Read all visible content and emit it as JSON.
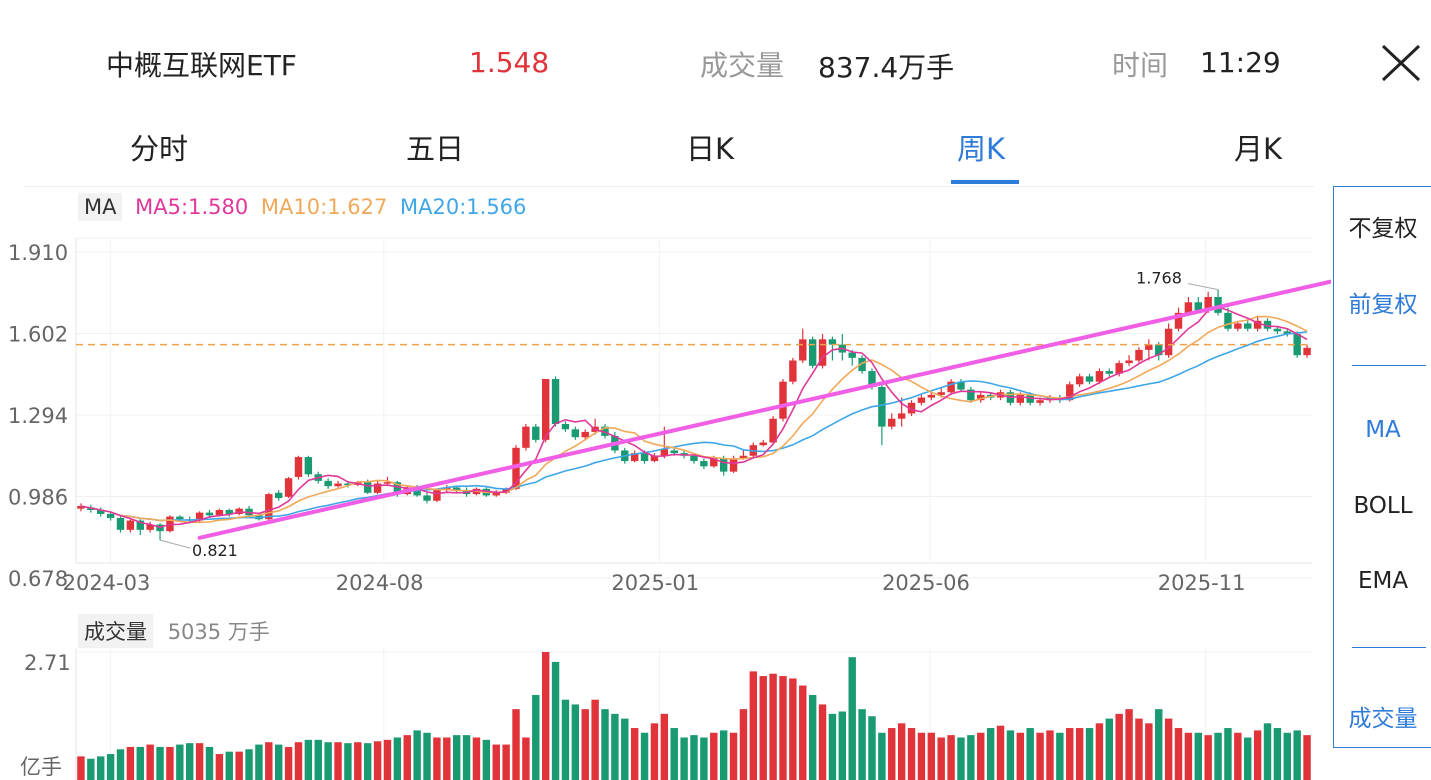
{
  "header": {
    "name": "中概互联网ETF",
    "price": "1.548",
    "volume_label": "成交量",
    "volume_value": "837.4万手",
    "time_label": "时间",
    "time_value": "11:29"
  },
  "tabs": [
    {
      "label": "分时",
      "active": false
    },
    {
      "label": "五日",
      "active": false
    },
    {
      "label": "日K",
      "active": false
    },
    {
      "label": "周K",
      "active": true
    },
    {
      "label": "月K",
      "active": false
    }
  ],
  "ma_legend": {
    "label": "MA",
    "ma5": "MA5:1.580",
    "ma10": "MA10:1.627",
    "ma20": "MA20:1.566"
  },
  "volume_legend": {
    "label": "成交量",
    "total": "5035 万手"
  },
  "side_panel": {
    "items": [
      "不复权",
      "前复权",
      "MA",
      "BOLL",
      "EMA",
      "成交量"
    ]
  },
  "colors": {
    "up": "#e0333a",
    "down": "#1a9a72",
    "accent": "#2f7bd9",
    "ma5": "#e0389a",
    "ma10": "#f0a859",
    "ma20": "#3fa6e8",
    "trendline": "#f05ee6"
  },
  "chart_data": {
    "type": "candlestick",
    "y_ticks": [
      "1.910",
      "1.602",
      "1.294",
      "0.986",
      "0.678"
    ],
    "ylim": [
      0.678,
      1.91
    ],
    "x_ticks": [
      "2024-03",
      "2024-08",
      "2025-01",
      "2025-06",
      "2025-11"
    ],
    "annotations": {
      "high": "1.768",
      "low": "0.821"
    },
    "reference_level": 1.56,
    "trendline_points": [
      [
        12,
        0.83
      ],
      [
        103,
        1.6
      ]
    ],
    "candles": [
      [
        0.94,
        0.95,
        0.93,
        0.96
      ],
      [
        0.945,
        0.935,
        0.925,
        0.955
      ],
      [
        0.935,
        0.92,
        0.91,
        0.945
      ],
      [
        0.92,
        0.905,
        0.895,
        0.93
      ],
      [
        0.905,
        0.86,
        0.85,
        0.91
      ],
      [
        0.86,
        0.895,
        0.85,
        0.9
      ],
      [
        0.895,
        0.86,
        0.84,
        0.9
      ],
      [
        0.86,
        0.88,
        0.85,
        0.89
      ],
      [
        0.88,
        0.855,
        0.821,
        0.885
      ],
      [
        0.855,
        0.91,
        0.85,
        0.915
      ],
      [
        0.91,
        0.9,
        0.89,
        0.915
      ],
      [
        0.9,
        0.895,
        0.885,
        0.91
      ],
      [
        0.895,
        0.925,
        0.89,
        0.93
      ],
      [
        0.925,
        0.915,
        0.905,
        0.935
      ],
      [
        0.915,
        0.935,
        0.91,
        0.94
      ],
      [
        0.935,
        0.92,
        0.91,
        0.94
      ],
      [
        0.92,
        0.94,
        0.915,
        0.945
      ],
      [
        0.94,
        0.915,
        0.905,
        0.95
      ],
      [
        0.915,
        0.9,
        0.895,
        0.92
      ],
      [
        0.9,
        0.995,
        0.895,
        1.0
      ],
      [
        1.0,
        0.98,
        0.97,
        1.01
      ],
      [
        0.985,
        1.055,
        0.98,
        1.06
      ],
      [
        1.06,
        1.135,
        1.05,
        1.14
      ],
      [
        1.135,
        1.07,
        1.06,
        1.14
      ],
      [
        1.07,
        1.045,
        1.035,
        1.08
      ],
      [
        1.045,
        1.025,
        1.015,
        1.055
      ],
      [
        1.025,
        1.035,
        1.02,
        1.045
      ],
      [
        1.035,
        1.03,
        1.02,
        1.045
      ],
      [
        1.03,
        1.04,
        1.025,
        1.045
      ],
      [
        1.04,
        1.0,
        0.995,
        1.05
      ],
      [
        1.0,
        1.035,
        0.995,
        1.045
      ],
      [
        1.035,
        1.04,
        1.03,
        1.06
      ],
      [
        1.04,
        0.995,
        0.985,
        1.045
      ],
      [
        0.995,
        1.02,
        0.99,
        1.025
      ],
      [
        1.02,
        0.99,
        0.985,
        1.03
      ],
      [
        0.99,
        0.97,
        0.96,
        1.0
      ],
      [
        0.97,
        1.01,
        0.965,
        1.015
      ],
      [
        1.01,
        1.02,
        1.005,
        1.03
      ],
      [
        1.02,
        1.01,
        1.0,
        1.025
      ],
      [
        1.01,
        0.995,
        0.985,
        1.02
      ],
      [
        0.995,
        1.015,
        0.99,
        1.02
      ],
      [
        1.015,
        0.99,
        0.985,
        1.02
      ],
      [
        0.99,
        1.0,
        0.985,
        1.01
      ],
      [
        1.0,
        1.015,
        0.995,
        1.02
      ],
      [
        1.015,
        1.17,
        1.01,
        1.18
      ],
      [
        1.17,
        1.25,
        1.16,
        1.26
      ],
      [
        1.25,
        1.2,
        1.19,
        1.26
      ],
      [
        1.2,
        1.43,
        1.19,
        1.43
      ],
      [
        1.43,
        1.26,
        1.25,
        1.44
      ],
      [
        1.26,
        1.24,
        1.23,
        1.27
      ],
      [
        1.24,
        1.21,
        1.2,
        1.25
      ],
      [
        1.21,
        1.23,
        1.2,
        1.24
      ],
      [
        1.23,
        1.25,
        1.22,
        1.28
      ],
      [
        1.25,
        1.215,
        1.205,
        1.26
      ],
      [
        1.215,
        1.16,
        1.15,
        1.23
      ],
      [
        1.16,
        1.12,
        1.11,
        1.17
      ],
      [
        1.12,
        1.15,
        1.115,
        1.16
      ],
      [
        1.15,
        1.12,
        1.11,
        1.16
      ],
      [
        1.12,
        1.14,
        1.115,
        1.15
      ],
      [
        1.14,
        1.165,
        1.13,
        1.25
      ],
      [
        1.16,
        1.15,
        1.14,
        1.17
      ],
      [
        1.15,
        1.14,
        1.13,
        1.16
      ],
      [
        1.14,
        1.12,
        1.11,
        1.15
      ],
      [
        1.12,
        1.1,
        1.09,
        1.13
      ],
      [
        1.1,
        1.13,
        1.095,
        1.14
      ],
      [
        1.13,
        1.08,
        1.065,
        1.14
      ],
      [
        1.08,
        1.13,
        1.075,
        1.14
      ],
      [
        1.13,
        1.14,
        1.125,
        1.16
      ],
      [
        1.14,
        1.18,
        1.135,
        1.19
      ],
      [
        1.18,
        1.19,
        1.175,
        1.2
      ],
      [
        1.19,
        1.28,
        1.185,
        1.29
      ],
      [
        1.28,
        1.42,
        1.27,
        1.43
      ],
      [
        1.42,
        1.5,
        1.41,
        1.51
      ],
      [
        1.5,
        1.58,
        1.49,
        1.62
      ],
      [
        1.58,
        1.48,
        1.47,
        1.59
      ],
      [
        1.48,
        1.58,
        1.47,
        1.6
      ],
      [
        1.58,
        1.56,
        1.5,
        1.59
      ],
      [
        1.56,
        1.53,
        1.5,
        1.6
      ],
      [
        1.53,
        1.51,
        1.48,
        1.54
      ],
      [
        1.51,
        1.46,
        1.45,
        1.52
      ],
      [
        1.46,
        1.4,
        1.39,
        1.47
      ],
      [
        1.4,
        1.25,
        1.18,
        1.41
      ],
      [
        1.25,
        1.28,
        1.24,
        1.3
      ],
      [
        1.28,
        1.3,
        1.25,
        1.36
      ],
      [
        1.3,
        1.34,
        1.29,
        1.35
      ],
      [
        1.34,
        1.36,
        1.33,
        1.37
      ],
      [
        1.36,
        1.37,
        1.35,
        1.38
      ],
      [
        1.37,
        1.38,
        1.36,
        1.4
      ],
      [
        1.38,
        1.42,
        1.37,
        1.43
      ],
      [
        1.42,
        1.39,
        1.38,
        1.43
      ],
      [
        1.39,
        1.35,
        1.34,
        1.4
      ],
      [
        1.35,
        1.37,
        1.34,
        1.38
      ],
      [
        1.37,
        1.36,
        1.35,
        1.38
      ],
      [
        1.36,
        1.38,
        1.35,
        1.39
      ],
      [
        1.38,
        1.34,
        1.33,
        1.39
      ],
      [
        1.34,
        1.37,
        1.33,
        1.38
      ],
      [
        1.37,
        1.34,
        1.33,
        1.38
      ],
      [
        1.34,
        1.35,
        1.33,
        1.36
      ],
      [
        1.35,
        1.36,
        1.34,
        1.37
      ],
      [
        1.36,
        1.35,
        1.34,
        1.37
      ],
      [
        1.35,
        1.41,
        1.345,
        1.42
      ],
      [
        1.41,
        1.44,
        1.4,
        1.45
      ],
      [
        1.44,
        1.42,
        1.41,
        1.45
      ],
      [
        1.42,
        1.46,
        1.41,
        1.47
      ],
      [
        1.46,
        1.45,
        1.44,
        1.47
      ],
      [
        1.45,
        1.49,
        1.44,
        1.5
      ],
      [
        1.49,
        1.5,
        1.48,
        1.52
      ],
      [
        1.5,
        1.54,
        1.49,
        1.55
      ],
      [
        1.54,
        1.56,
        1.5,
        1.58
      ],
      [
        1.56,
        1.52,
        1.5,
        1.57
      ],
      [
        1.52,
        1.62,
        1.51,
        1.64
      ],
      [
        1.62,
        1.68,
        1.61,
        1.7
      ],
      [
        1.68,
        1.72,
        1.67,
        1.74
      ],
      [
        1.72,
        1.69,
        1.68,
        1.74
      ],
      [
        1.69,
        1.74,
        1.68,
        1.76
      ],
      [
        1.74,
        1.68,
        1.67,
        1.768
      ],
      [
        1.68,
        1.62,
        1.61,
        1.7
      ],
      [
        1.62,
        1.64,
        1.61,
        1.65
      ],
      [
        1.64,
        1.62,
        1.61,
        1.66
      ],
      [
        1.62,
        1.65,
        1.61,
        1.67
      ],
      [
        1.65,
        1.62,
        1.61,
        1.66
      ],
      [
        1.62,
        1.61,
        1.6,
        1.63
      ],
      [
        1.61,
        1.6,
        1.59,
        1.62
      ],
      [
        1.6,
        1.52,
        1.51,
        1.61
      ],
      [
        1.52,
        1.548,
        1.51,
        1.56
      ]
    ],
    "volume_ylim": [
      0,
      2.71
    ],
    "volume_tick_top": "2.71",
    "volume_unit": "亿手",
    "volumes": [
      0.5,
      0.45,
      0.5,
      0.55,
      0.65,
      0.7,
      0.7,
      0.75,
      0.7,
      0.7,
      0.75,
      0.78,
      0.78,
      0.7,
      0.55,
      0.6,
      0.6,
      0.65,
      0.75,
      0.8,
      0.75,
      0.7,
      0.8,
      0.85,
      0.85,
      0.8,
      0.8,
      0.78,
      0.8,
      0.78,
      0.82,
      0.85,
      0.9,
      0.95,
      1.05,
      1.0,
      0.9,
      0.9,
      0.95,
      0.95,
      0.9,
      0.85,
      0.75,
      0.75,
      1.5,
      0.9,
      1.8,
      2.71,
      2.5,
      1.7,
      1.6,
      1.5,
      1.7,
      1.5,
      1.4,
      1.3,
      1.1,
      1.0,
      1.2,
      1.4,
      1.1,
      0.9,
      0.95,
      0.9,
      1.0,
      1.05,
      1.0,
      1.5,
      2.3,
      2.2,
      2.25,
      2.2,
      2.15,
      2.0,
      1.8,
      1.6,
      1.4,
      1.45,
      2.6,
      1.5,
      1.35,
      1.0,
      1.1,
      1.2,
      1.1,
      1.0,
      1.0,
      0.9,
      0.95,
      0.9,
      0.95,
      1.0,
      1.1,
      1.15,
      1.05,
      1.0,
      1.1,
      1.0,
      1.05,
      1.0,
      1.1,
      1.1,
      1.1,
      1.2,
      1.3,
      1.4,
      1.5,
      1.3,
      1.2,
      1.5,
      1.3,
      1.1,
      1.0,
      1.0,
      0.95,
      1.0,
      1.1,
      1.0,
      0.9,
      1.05,
      1.2,
      1.1,
      1.0,
      1.05,
      0.95
    ]
  }
}
